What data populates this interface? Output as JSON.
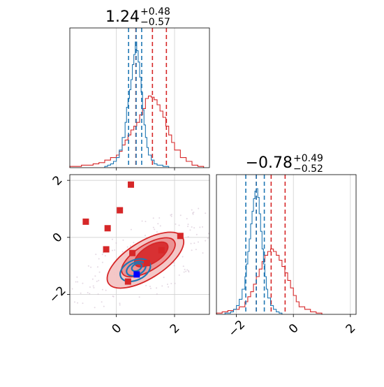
{
  "colors": {
    "red": "#d62728",
    "blue": "#1f77b4",
    "grid": "#d0d0d0",
    "axis": "#808080"
  },
  "chart_data": [
    {
      "type": "histogram",
      "panel": "top-left",
      "title_value": "1.24",
      "title_plus": "+0.48",
      "title_minus": "−0.57",
      "xlim": [
        -1.6,
        3.2
      ],
      "xticks": [
        0,
        2
      ],
      "grid": true,
      "series": [
        {
          "color": "red",
          "quantile_lines": [
            0.67,
            1.24,
            1.72
          ],
          "bins_x": [
            -1.6,
            -1.4,
            -1.2,
            -1.0,
            -0.8,
            -0.6,
            -0.4,
            -0.2,
            0.0,
            0.1,
            0.2,
            0.3,
            0.4,
            0.5,
            0.6,
            0.7,
            0.8,
            0.9,
            1.0,
            1.1,
            1.2,
            1.3,
            1.4,
            1.5,
            1.6,
            1.7,
            1.8,
            1.9,
            2.0,
            2.2,
            2.4,
            2.6,
            2.8
          ],
          "counts": [
            0.01,
            0.01,
            0.02,
            0.02,
            0.03,
            0.04,
            0.06,
            0.08,
            0.1,
            0.13,
            0.18,
            0.22,
            0.26,
            0.3,
            0.33,
            0.36,
            0.42,
            0.47,
            0.55,
            0.57,
            0.56,
            0.54,
            0.5,
            0.45,
            0.4,
            0.33,
            0.26,
            0.2,
            0.14,
            0.08,
            0.05,
            0.02,
            0.01
          ]
        },
        {
          "color": "blue",
          "quantile_lines": [
            0.42,
            0.68,
            0.87
          ],
          "bins_x": [
            -0.4,
            -0.3,
            -0.2,
            -0.1,
            0.0,
            0.1,
            0.2,
            0.3,
            0.35,
            0.4,
            0.45,
            0.5,
            0.55,
            0.6,
            0.65,
            0.7,
            0.75,
            0.8,
            0.85,
            0.9,
            0.95,
            1.0,
            1.05,
            1.1,
            1.2,
            1.3,
            1.4,
            1.6
          ],
          "counts": [
            0.01,
            0.02,
            0.03,
            0.05,
            0.08,
            0.14,
            0.24,
            0.36,
            0.48,
            0.55,
            0.62,
            0.7,
            0.82,
            0.9,
            1.0,
            0.93,
            0.84,
            0.72,
            0.6,
            0.46,
            0.34,
            0.24,
            0.16,
            0.1,
            0.06,
            0.03,
            0.02,
            0.01
          ]
        }
      ]
    },
    {
      "type": "scatter",
      "panel": "bottom-left",
      "xlim": [
        -1.6,
        3.2
      ],
      "ylim": [
        -2.7,
        2.2
      ],
      "xticks": [
        0,
        2
      ],
      "yticks": [
        -2,
        0,
        2
      ],
      "grid": true,
      "red_points": [
        [
          -1.05,
          0.55
        ],
        [
          -0.3,
          0.32
        ],
        [
          0.12,
          0.95
        ],
        [
          0.5,
          1.85
        ],
        [
          -0.35,
          -0.42
        ],
        [
          0.55,
          -0.55
        ],
        [
          1.05,
          -0.9
        ],
        [
          1.55,
          -0.45
        ],
        [
          2.2,
          0.05
        ],
        [
          0.4,
          -1.55
        ]
      ],
      "blue_points": [
        [
          0.7,
          -1.3
        ]
      ],
      "red_contours": [
        {
          "level": 0.9,
          "cx": 1.0,
          "cy": -0.8,
          "rx": 1.5,
          "ry": 0.65,
          "angle": 32
        },
        {
          "level": 0.6,
          "cx": 1.1,
          "cy": -0.7,
          "rx": 1.05,
          "ry": 0.45,
          "angle": 32
        },
        {
          "level": 0.3,
          "cx": 1.2,
          "cy": -0.6,
          "rx": 0.65,
          "ry": 0.3,
          "angle": 32
        }
      ],
      "blue_contours": [
        {
          "level": 0.9,
          "cx": 0.65,
          "cy": -1.15,
          "rx": 0.55,
          "ry": 0.35,
          "angle": 25
        },
        {
          "level": 0.6,
          "cx": 0.68,
          "cy": -1.1,
          "rx": 0.35,
          "ry": 0.22,
          "angle": 25
        },
        {
          "level": 0.3,
          "cx": 0.7,
          "cy": -1.05,
          "rx": 0.18,
          "ry": 0.12,
          "angle": 25
        }
      ]
    },
    {
      "type": "histogram",
      "panel": "bottom-right",
      "title_value": "−0.78",
      "title_plus": "+0.49",
      "title_minus": "−0.52",
      "xlim": [
        -2.7,
        2.2
      ],
      "xticks": [
        -2,
        0,
        2
      ],
      "grid": true,
      "series": [
        {
          "color": "red",
          "quantile_lines": [
            -1.3,
            -0.78,
            -0.29
          ],
          "bins_x": [
            -2.7,
            -2.5,
            -2.3,
            -2.1,
            -1.9,
            -1.7,
            -1.6,
            -1.5,
            -1.4,
            -1.3,
            -1.2,
            -1.1,
            -1.0,
            -0.9,
            -0.8,
            -0.7,
            -0.6,
            -0.5,
            -0.4,
            -0.3,
            -0.2,
            -0.1,
            0.0,
            0.1,
            0.2,
            0.4,
            0.6,
            0.8
          ],
          "counts": [
            0.01,
            0.02,
            0.03,
            0.04,
            0.06,
            0.1,
            0.14,
            0.18,
            0.24,
            0.3,
            0.36,
            0.42,
            0.47,
            0.5,
            0.52,
            0.5,
            0.47,
            0.43,
            0.38,
            0.33,
            0.27,
            0.21,
            0.15,
            0.1,
            0.06,
            0.04,
            0.02,
            0.01
          ]
        },
        {
          "color": "blue",
          "quantile_lines": [
            -1.67,
            -1.3,
            -1.02
          ],
          "bins_x": [
            -2.4,
            -2.2,
            -2.1,
            -2.0,
            -1.9,
            -1.8,
            -1.7,
            -1.65,
            -1.6,
            -1.55,
            -1.5,
            -1.45,
            -1.4,
            -1.35,
            -1.3,
            -1.25,
            -1.2,
            -1.15,
            -1.1,
            -1.05,
            -1.0,
            -0.95,
            -0.9,
            -0.8,
            -0.7,
            -0.6,
            -0.5
          ],
          "counts": [
            0.01,
            0.02,
            0.04,
            0.07,
            0.12,
            0.2,
            0.3,
            0.4,
            0.5,
            0.6,
            0.72,
            0.82,
            0.92,
            0.98,
            1.0,
            0.93,
            0.8,
            0.66,
            0.52,
            0.4,
            0.3,
            0.2,
            0.13,
            0.07,
            0.04,
            0.02,
            0.01
          ]
        }
      ]
    }
  ]
}
